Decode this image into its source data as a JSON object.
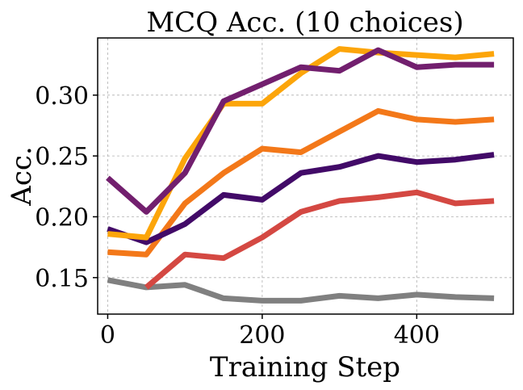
{
  "chart_data": {
    "type": "line",
    "title": "MCQ Acc. (10 choices)",
    "xlabel": "Training Step",
    "ylabel": "Acc.",
    "xlim": [
      -13,
      525
    ],
    "ylim": [
      0.12,
      0.347
    ],
    "xticks": [
      0,
      200,
      400
    ],
    "xtick_labels": [
      "0",
      "200",
      "400"
    ],
    "yticks": [
      0.15,
      0.2,
      0.25,
      0.3
    ],
    "ytick_labels": [
      "0.15",
      "0.20",
      "0.25",
      "0.30"
    ],
    "grid": true,
    "legend": "none",
    "x": [
      0,
      50,
      100,
      150,
      200,
      250,
      300,
      350,
      400,
      450,
      500
    ],
    "series": [
      {
        "color": "#808080",
        "values": [
          0.148,
          0.142,
          0.144,
          0.133,
          0.131,
          0.131,
          0.135,
          0.133,
          0.136,
          0.134,
          0.133
        ]
      },
      {
        "color": "#d44842",
        "values": [
          null,
          0.142,
          0.169,
          0.166,
          0.183,
          0.204,
          0.213,
          0.216,
          0.22,
          0.211,
          0.213
        ]
      },
      {
        "color": "#f37819",
        "values": [
          0.171,
          0.169,
          0.211,
          0.236,
          0.256,
          0.253,
          0.27,
          0.287,
          0.28,
          0.278,
          0.28
        ]
      },
      {
        "color": "#420a68",
        "values": [
          0.19,
          0.179,
          0.194,
          0.218,
          0.214,
          0.236,
          0.241,
          0.25,
          0.245,
          0.247,
          0.251
        ]
      },
      {
        "color": "#fca50a",
        "values": [
          0.186,
          0.183,
          0.248,
          0.293,
          0.293,
          0.318,
          0.338,
          0.335,
          0.333,
          0.331,
          0.334
        ]
      },
      {
        "color": "#721f6e",
        "values": [
          0.232,
          0.204,
          0.236,
          0.295,
          0.309,
          0.323,
          0.32,
          0.337,
          0.323,
          0.325,
          0.325
        ]
      }
    ]
  }
}
